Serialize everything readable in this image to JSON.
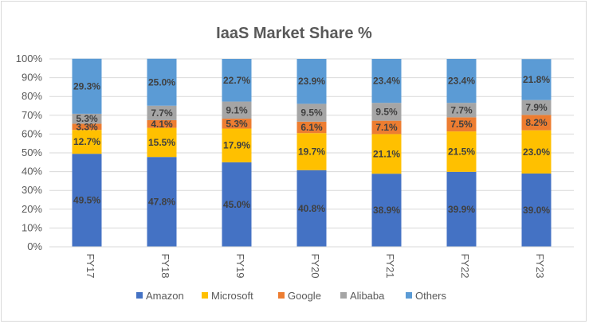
{
  "chart_data": {
    "type": "bar",
    "stacked": true,
    "title": "IaaS Market Share %",
    "categories": [
      "FY17",
      "FY18",
      "FY19",
      "FY20",
      "FY21",
      "FY22",
      "FY23"
    ],
    "series": [
      {
        "name": "Amazon",
        "color": "#4472c4",
        "values": [
          49.5,
          47.8,
          45.0,
          40.8,
          38.9,
          39.9,
          39.0
        ],
        "labels": [
          "49.5%",
          "47.8%",
          "45.0%",
          "40.8%",
          "38.9%",
          "39.9%",
          "39.0%"
        ]
      },
      {
        "name": "Microsoft",
        "color": "#ffc000",
        "values": [
          12.7,
          15.5,
          17.9,
          19.7,
          21.1,
          21.5,
          23.0
        ],
        "labels": [
          "12.7%",
          "15.5%",
          "17.9%",
          "19.7%",
          "21.1%",
          "21.5%",
          "23.0%"
        ]
      },
      {
        "name": "Google",
        "color": "#ed7d31",
        "values": [
          3.3,
          4.1,
          5.3,
          6.1,
          7.1,
          7.5,
          8.2
        ],
        "labels": [
          "3.3%",
          "4.1%",
          "5.3%",
          "6.1%",
          "7.1%",
          "7.5%",
          "8.2%"
        ]
      },
      {
        "name": "Alibaba",
        "color": "#a5a5a5",
        "values": [
          5.3,
          7.7,
          9.1,
          9.5,
          9.5,
          7.7,
          7.9
        ],
        "labels": [
          "5.3%",
          "7.7%",
          "9.1%",
          "9.5%",
          "9.5%",
          "7.7%",
          "7.9%"
        ]
      },
      {
        "name": "Others",
        "color": "#5b9bd5",
        "values": [
          29.3,
          25.0,
          22.7,
          23.9,
          23.4,
          23.4,
          21.8
        ],
        "labels": [
          "29.3%",
          "25.0%",
          "22.7%",
          "23.9%",
          "23.4%",
          "23.4%",
          "21.8%"
        ]
      }
    ],
    "ylim": [
      0,
      100
    ],
    "yticks": [
      "0%",
      "10%",
      "20%",
      "30%",
      "40%",
      "50%",
      "60%",
      "70%",
      "80%",
      "90%",
      "100%"
    ],
    "grid": true,
    "legend_position": "bottom"
  }
}
